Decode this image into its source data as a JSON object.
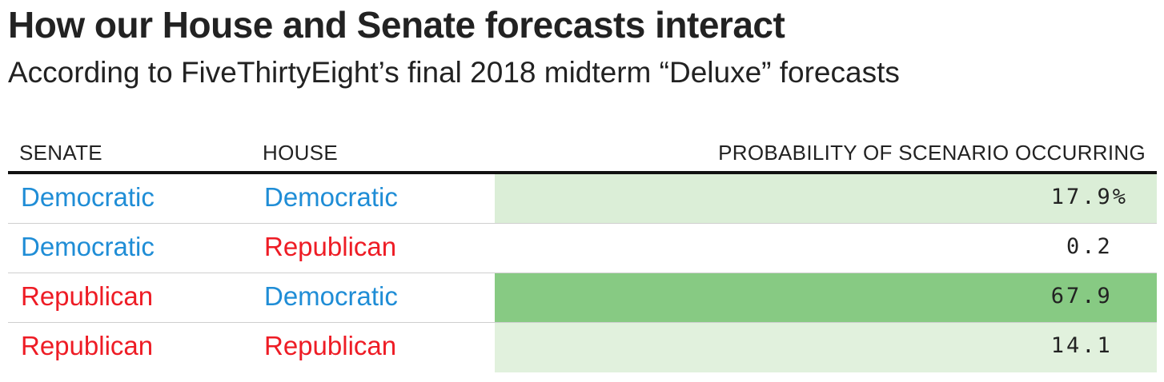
{
  "title": "How our House and Senate forecasts interact",
  "subtitle": "According to FiveThirtyEight’s final 2018 midterm “Deluxe” forecasts",
  "columns": {
    "senate": "SENATE",
    "house": "HOUSE",
    "probability": "PROBABILITY OF SCENARIO OCCURRING"
  },
  "colors": {
    "Democratic": "#1f8dd6",
    "Republican": "#ee1c25",
    "bar_max": "#87ca83",
    "bar_base": "#e2f1de"
  },
  "chart_data": {
    "type": "table",
    "title": "How our House and Senate forecasts interact",
    "subtitle": "According to FiveThirtyEight’s final 2018 midterm “Deluxe” forecasts",
    "rows": [
      {
        "senate": "Democratic",
        "house": "Democratic",
        "probability": 17.9,
        "label": "17.9%"
      },
      {
        "senate": "Democratic",
        "house": "Republican",
        "probability": 0.2,
        "label": "0.2 "
      },
      {
        "senate": "Republican",
        "house": "Democratic",
        "probability": 67.9,
        "label": "67.9 "
      },
      {
        "senate": "Republican",
        "house": "Republican",
        "probability": 14.1,
        "label": "14.1 "
      }
    ]
  }
}
